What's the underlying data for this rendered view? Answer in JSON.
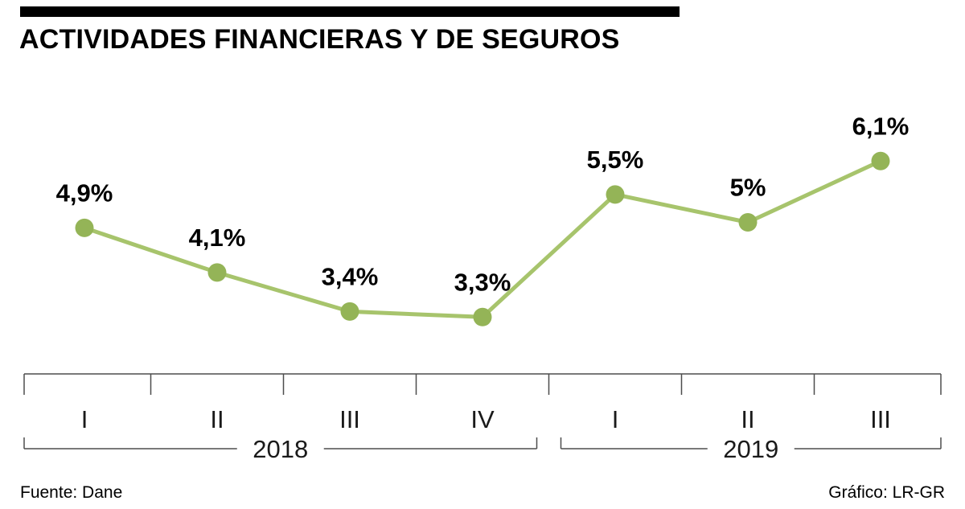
{
  "title": "ACTIVIDADES FINANCIERAS Y DE SEGUROS",
  "footer": {
    "source": "Fuente: Dane",
    "credit": "Gráfico: LR-GR"
  },
  "chart_data": {
    "type": "line",
    "title": "ACTIVIDADES FINANCIERAS Y DE SEGUROS",
    "categories": [
      "I",
      "II",
      "III",
      "IV",
      "I",
      "II",
      "III"
    ],
    "values": [
      4.9,
      4.1,
      3.4,
      3.3,
      5.5,
      5.0,
      6.1
    ],
    "point_labels": [
      "4,9%",
      "4,1%",
      "3,4%",
      "3,3%",
      "5,5%",
      "5%",
      "6,1%"
    ],
    "groups": [
      {
        "label": "2018",
        "start": 0,
        "end": 3
      },
      {
        "label": "2019",
        "start": 4,
        "end": 6
      }
    ],
    "ylim": [
      0,
      7
    ],
    "grid": false,
    "legend": false,
    "line_color": "#a7c46c",
    "marker_color": "#94b457",
    "axis_color": "#4d4d4d"
  }
}
